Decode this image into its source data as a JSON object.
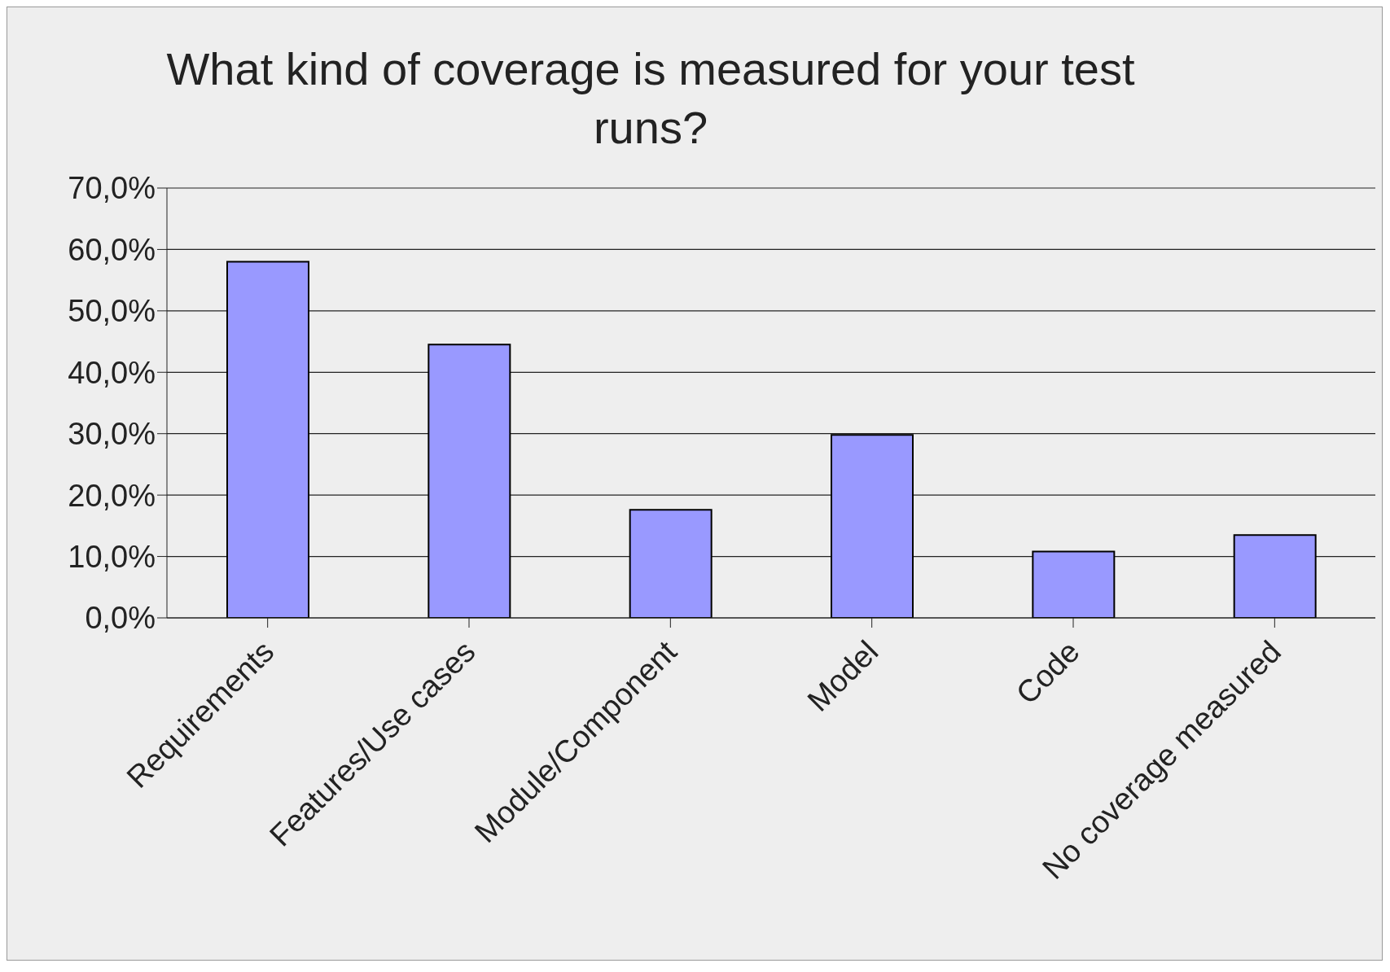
{
  "chart_data": {
    "type": "bar",
    "title": "What kind of coverage is measured for your test runs?",
    "categories": [
      "Requirements",
      "Features/Use cases",
      "Module/Component",
      "Model",
      "Code",
      "No coverage measured"
    ],
    "values": [
      58.0,
      44.5,
      17.6,
      29.8,
      10.8,
      13.5
    ],
    "color": "#9999ff",
    "ylim": [
      0,
      70
    ],
    "yticks": [
      {
        "value": 0,
        "label": "0,0%"
      },
      {
        "value": 10,
        "label": "10,0%"
      },
      {
        "value": 20,
        "label": "20,0%"
      },
      {
        "value": 30,
        "label": "30,0%"
      },
      {
        "value": 40,
        "label": "40,0%"
      },
      {
        "value": 50,
        "label": "50,0%"
      },
      {
        "value": 60,
        "label": "60,0%"
      },
      {
        "value": 70,
        "label": "70,0%"
      }
    ],
    "grid": "y",
    "legend": false
  }
}
